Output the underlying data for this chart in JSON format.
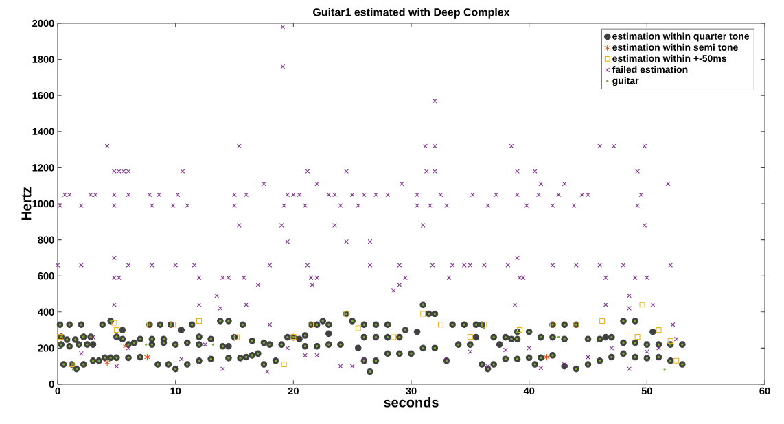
{
  "chart_data": {
    "type": "scatter",
    "title": "Guitar1 estimated with Deep Complex",
    "xlabel": "seconds",
    "ylabel": "Hertz",
    "xlim": [
      0,
      60
    ],
    "ylim": [
      0,
      2000
    ],
    "xticks": [
      0,
      10,
      20,
      30,
      40,
      50,
      60
    ],
    "yticks": [
      0,
      200,
      400,
      600,
      800,
      1000,
      1200,
      1400,
      1600,
      1800,
      2000
    ],
    "legend": "top right",
    "grid": false,
    "series": [
      {
        "name": "estimation within quarter tone",
        "color": "#404040",
        "marker": "circle",
        "x": [
          0.2,
          1,
          2,
          0.3,
          0.8,
          1.5,
          2.2,
          2.8,
          0.3,
          1,
          1.8,
          2.5,
          3,
          0.5,
          1.2,
          1.6,
          2.2,
          3,
          3.5,
          4,
          4.5,
          3.8,
          4.5,
          5,
          5.5,
          5.5,
          6,
          6.5,
          7,
          5,
          6,
          7,
          7.8,
          8.7,
          9.6,
          8,
          9,
          8,
          9,
          10,
          8.5,
          9.4,
          10,
          11,
          10.5,
          11.4,
          12,
          11,
          12,
          12,
          13,
          13.8,
          14.5,
          13,
          14,
          14.5,
          15,
          15.7,
          14.5,
          15.5,
          16,
          16.5,
          17,
          16.5,
          17.5,
          18,
          19,
          18.5,
          17.5,
          19.5,
          20,
          20.5,
          21,
          21.5,
          22,
          22.5,
          23,
          21,
          22,
          23,
          23,
          24,
          24.5,
          25,
          26,
          27,
          28,
          26,
          27,
          28,
          29,
          25.5,
          26,
          27,
          26.5,
          28,
          29,
          30,
          29.5,
          30.5,
          31,
          31.5,
          32,
          31,
          32,
          33,
          33.5,
          34.5,
          35.5,
          34,
          35,
          35.5,
          36,
          36.5,
          37,
          36,
          37,
          38,
          37.5,
          38.5,
          39,
          39,
          40,
          38,
          39,
          40,
          41,
          42,
          41,
          42,
          43,
          44,
          42,
          43,
          40.5,
          43,
          44,
          45,
          45,
          46,
          47,
          46,
          47,
          48,
          46.5,
          48,
          49,
          48,
          49,
          50,
          49,
          50,
          50.5,
          51,
          52,
          53,
          51,
          52,
          53
        ],
        "values": [
          330,
          330,
          330,
          262,
          247,
          247,
          262,
          262,
          220,
          210,
          220,
          220,
          220,
          110,
          110,
          85,
          110,
          130,
          130,
          147,
          147,
          330,
          350,
          262,
          250,
          300,
          220,
          230,
          250,
          147,
          147,
          150,
          330,
          330,
          330,
          250,
          250,
          220,
          230,
          220,
          110,
          110,
          85,
          110,
          300,
          330,
          262,
          230,
          220,
          130,
          140,
          350,
          350,
          250,
          210,
          210,
          260,
          330,
          145,
          145,
          150,
          160,
          170,
          240,
          230,
          220,
          220,
          130,
          110,
          260,
          260,
          250,
          270,
          330,
          330,
          350,
          330,
          210,
          210,
          220,
          280,
          220,
          390,
          350,
          330,
          330,
          330,
          260,
          260,
          260,
          260,
          200,
          130,
          130,
          70,
          170,
          170,
          170,
          300,
          290,
          440,
          390,
          390,
          200,
          200,
          130,
          330,
          330,
          330,
          220,
          220,
          260,
          110,
          85,
          110,
          330,
          260,
          260,
          220,
          250,
          250,
          290,
          290,
          140,
          140,
          147,
          147,
          160,
          260,
          330,
          330,
          330,
          260,
          250,
          110,
          100,
          85,
          110,
          250,
          250,
          260,
          130,
          150,
          170,
          260,
          350,
          350,
          230,
          230,
          220,
          150,
          145,
          290,
          220,
          220,
          220,
          150,
          130,
          110
        ]
      },
      {
        "name": "estimation within semi tone",
        "color": "#d95319",
        "x": [
          4.2,
          7.6,
          41.5,
          5.8
        ],
        "values": [
          120,
          150,
          150,
          210
        ]
      },
      {
        "name": "estimation within +-50ms",
        "color": "#edb120",
        "marker": "square",
        "x": [
          0.2,
          1.2,
          4.8,
          5,
          7.8,
          9.8,
          12,
          15.2,
          19.2,
          20,
          21.5,
          24.5,
          25.5,
          28.5,
          31,
          32.5,
          35,
          36.2,
          39.2,
          42,
          44,
          46.2,
          49.2,
          49.6,
          51,
          52,
          52.5
        ],
        "values": [
          262,
          110,
          340,
          300,
          330,
          330,
          350,
          260,
          110,
          262,
          330,
          390,
          310,
          260,
          390,
          330,
          262,
          330,
          300,
          330,
          330,
          350,
          262,
          440,
          300,
          240,
          130
        ]
      },
      {
        "name": "failed estimation",
        "color": "#7e2f8e",
        "marker": "cross",
        "x": [
          0,
          0.2,
          0.6,
          1,
          2,
          2,
          2.8,
          3.2,
          4.2,
          4.8,
          5.2,
          5.6,
          6,
          4.8,
          4.8,
          4.8,
          4.8,
          5.2,
          4.8,
          6,
          6,
          7.8,
          8,
          8,
          8.6,
          9.8,
          10,
          10.6,
          10.2,
          11,
          11.6,
          12,
          12,
          13.5,
          13.8,
          14,
          14.5,
          15,
          15,
          15.4,
          15.4,
          16,
          15.8,
          16,
          17,
          17.5,
          18,
          18,
          19,
          19.1,
          19.1,
          19.2,
          19.5,
          19.5,
          20,
          20.5,
          21,
          21.2,
          21.2,
          21.5,
          21.6,
          22,
          22,
          23,
          23.5,
          23.5,
          24,
          24.5,
          24.5,
          25,
          25.5,
          26,
          26.5,
          26.5,
          27,
          28,
          28.5,
          29,
          29.2,
          29,
          29.5,
          30.5,
          30.5,
          31,
          31.2,
          31.3,
          31.6,
          31.8,
          32,
          32,
          32,
          32.5,
          33,
          33.2,
          33.5,
          34.5,
          35,
          35.2,
          36.2,
          36.5,
          37.2,
          38.2,
          38.5,
          38.8,
          39,
          39,
          39,
          39.2,
          39.5,
          39.8,
          40.5,
          40.8,
          41,
          42,
          42,
          42.5,
          43,
          43.8,
          44,
          44.5,
          45,
          46,
          46,
          46.5,
          46.5,
          47.2,
          48,
          48.5,
          48.5,
          49,
          49.2,
          49.2,
          49.5,
          49.8,
          49.8,
          50,
          50.5,
          51.8,
          52,
          52.2,
          52.5,
          2,
          3,
          5,
          6,
          10.5,
          12.5,
          14,
          17.8,
          19.5,
          21,
          22,
          24,
          25,
          26,
          27,
          33,
          35,
          36.5,
          38,
          40,
          41,
          43,
          45,
          47,
          48.5,
          50,
          51
        ],
        "values": [
          660,
          990,
          1050,
          1050,
          660,
          990,
          1050,
          1050,
          1320,
          1180,
          1180,
          1180,
          1180,
          1050,
          990,
          700,
          590,
          590,
          440,
          1050,
          660,
          1050,
          990,
          660,
          1050,
          990,
          660,
          1180,
          1050,
          990,
          660,
          590,
          440,
          490,
          420,
          590,
          590,
          990,
          1050,
          1320,
          880,
          1050,
          590,
          440,
          550,
          1110,
          660,
          330,
          880,
          1980,
          1760,
          990,
          790,
          1050,
          1050,
          1050,
          990,
          1180,
          660,
          590,
          550,
          1110,
          590,
          1050,
          1050,
          880,
          990,
          1180,
          790,
          1050,
          990,
          1050,
          790,
          660,
          1050,
          1050,
          520,
          660,
          1110,
          550,
          590,
          1050,
          990,
          880,
          1320,
          1180,
          990,
          660,
          1570,
          1320,
          1180,
          1050,
          990,
          590,
          660,
          660,
          660,
          1050,
          660,
          990,
          1050,
          660,
          1320,
          440,
          700,
          1180,
          1050,
          590,
          590,
          990,
          1180,
          1050,
          1110,
          660,
          990,
          1050,
          1110,
          990,
          660,
          1050,
          1050,
          1320,
          660,
          590,
          440,
          1320,
          660,
          490,
          420,
          590,
          1180,
          990,
          1050,
          880,
          1320,
          590,
          440,
          1110,
          660,
          330,
          250,
          170,
          260,
          100,
          200,
          140,
          220,
          85,
          70,
          200,
          160,
          160,
          100,
          100,
          140,
          260,
          140,
          180,
          100,
          190,
          200,
          90,
          110,
          150,
          200,
          85,
          180,
          200
        ]
      },
      {
        "name": "guitar",
        "color": "#77ac30",
        "marker": "point",
        "x": [
          0.2,
          1,
          2,
          0.3,
          0.8,
          1.5,
          2.2,
          2.8,
          0.3,
          1,
          1.8,
          2.5,
          0.5,
          1.2,
          1.6,
          2.2,
          3,
          3.5,
          4,
          4.5,
          3.8,
          4.5,
          5,
          5.5,
          6,
          6.5,
          7,
          5,
          6,
          7,
          7.8,
          8.7,
          9.6,
          8,
          9,
          8,
          9,
          10,
          8.5,
          9.4,
          10,
          11,
          11.4,
          12,
          11,
          12,
          12,
          13,
          13.8,
          14.5,
          13,
          14,
          15,
          15.7,
          14.5,
          15.5,
          16,
          16.5,
          17,
          16.5,
          17.5,
          18,
          19,
          18.5,
          17.5,
          19.5,
          20,
          21,
          21.5,
          22,
          22.5,
          23,
          21,
          22,
          23,
          24,
          24.5,
          25,
          26,
          27,
          28,
          26,
          27,
          28,
          29,
          26,
          27,
          26.5,
          28,
          29,
          30,
          29.5,
          31,
          31.5,
          32,
          31,
          32,
          33,
          33.5,
          34.5,
          35.5,
          34,
          35,
          36,
          36.5,
          37,
          36,
          37,
          38,
          38.5,
          39,
          39,
          40,
          38,
          39,
          40,
          41,
          42,
          41,
          42,
          43,
          44,
          42,
          43,
          40.5,
          44,
          45,
          45,
          46,
          47,
          46,
          47,
          48,
          48,
          49,
          48,
          49,
          50,
          49,
          50,
          51,
          52,
          53,
          51,
          52,
          53,
          1.3,
          7.5,
          13.2,
          36.2,
          42.5,
          51.5
        ],
        "values": [
          330,
          330,
          330,
          262,
          247,
          247,
          262,
          262,
          220,
          210,
          220,
          220,
          110,
          110,
          85,
          110,
          130,
          130,
          147,
          147,
          330,
          350,
          262,
          250,
          220,
          230,
          250,
          147,
          147,
          150,
          330,
          330,
          330,
          250,
          250,
          220,
          230,
          220,
          110,
          110,
          85,
          110,
          330,
          262,
          230,
          220,
          130,
          140,
          350,
          350,
          250,
          210,
          260,
          330,
          145,
          145,
          150,
          160,
          170,
          240,
          230,
          220,
          220,
          130,
          110,
          260,
          260,
          270,
          330,
          330,
          350,
          330,
          210,
          210,
          220,
          220,
          390,
          350,
          330,
          330,
          330,
          260,
          260,
          260,
          260,
          130,
          130,
          70,
          170,
          170,
          170,
          300,
          440,
          390,
          390,
          200,
          200,
          130,
          330,
          330,
          330,
          220,
          220,
          110,
          85,
          110,
          330,
          260,
          260,
          250,
          250,
          290,
          290,
          140,
          140,
          147,
          147,
          160,
          260,
          330,
          330,
          330,
          260,
          250,
          110,
          85,
          110,
          250,
          250,
          260,
          130,
          150,
          170,
          350,
          350,
          230,
          230,
          220,
          150,
          145,
          220,
          220,
          220,
          150,
          130,
          110,
          80,
          220,
          220,
          310,
          260,
          80
        ]
      }
    ]
  }
}
